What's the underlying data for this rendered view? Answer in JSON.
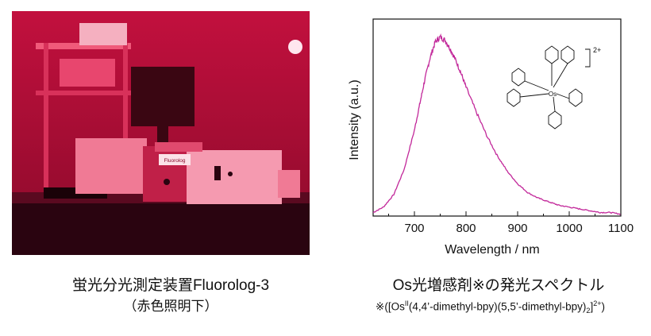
{
  "left_caption": {
    "line1": "蛍光分光測定装置Fluorolog-3",
    "line2": "（赤色照明下）"
  },
  "right_caption": {
    "line1": "Os光増感剤※の発光スペクトル",
    "line2_prefix": "※([Os",
    "line2_sup": "II",
    "line2_mid": "(4,4’-dimethyl-bpy)(5,5’-dimethyl-bpy)",
    "line2_sub": "2",
    "line2_end": "]",
    "line2_end_sup": "2+",
    "line2_close": ")"
  },
  "photo": {
    "instrument_label": "Fluorolog",
    "tint_color": "#e8164a"
  },
  "structure": {
    "metal": "Os",
    "charge": "2+"
  },
  "chart_data": {
    "type": "line",
    "xlabel": "Wavelength / nm",
    "ylabel": "Intensity (a.u.)",
    "xlim": [
      620,
      1100
    ],
    "ylim": [
      0,
      1.1
    ],
    "xticks": [
      700,
      800,
      900,
      1000,
      1100
    ],
    "line_color": "#c2289a",
    "grid": false,
    "series": [
      {
        "x": [
          620,
          640,
          660,
          680,
          700,
          710,
          720,
          730,
          740,
          750,
          760,
          770,
          780,
          790,
          800,
          820,
          840,
          860,
          880,
          900,
          920,
          940,
          960,
          980,
          1000,
          1020,
          1040,
          1060,
          1080,
          1100
        ],
        "values": [
          0.02,
          0.05,
          0.12,
          0.26,
          0.48,
          0.62,
          0.76,
          0.88,
          0.97,
          1.0,
          0.98,
          0.93,
          0.87,
          0.8,
          0.72,
          0.58,
          0.45,
          0.34,
          0.25,
          0.18,
          0.13,
          0.1,
          0.08,
          0.06,
          0.05,
          0.04,
          0.03,
          0.02,
          0.02,
          0.01
        ]
      }
    ]
  }
}
